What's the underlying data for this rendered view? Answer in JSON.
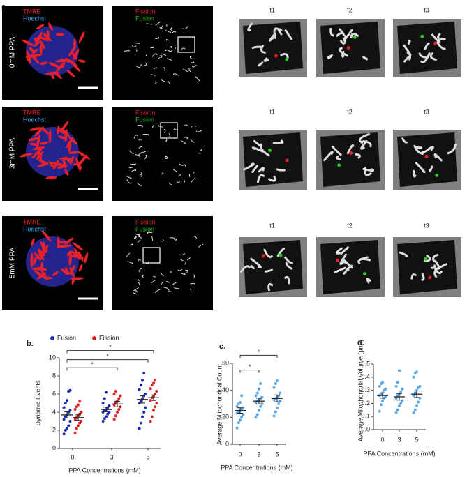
{
  "panels": {
    "label": "a.",
    "rows": [
      {
        "label": "0mM PPA",
        "stain": [
          "TMRE",
          "Hoechst"
        ],
        "overlay": [
          "Fission",
          "Fusion"
        ],
        "times": [
          "t1",
          "t2",
          "t3"
        ]
      },
      {
        "label": "3mM PPA",
        "stain": [
          "TMRE",
          "Hoechst"
        ],
        "overlay": [
          "Fission",
          "Fusion"
        ],
        "times": [
          "t1",
          "t2",
          "t3"
        ]
      },
      {
        "label": "5mM PPA",
        "stain": [
          "TMRE",
          "Hoechst"
        ],
        "overlay": [
          "Fission",
          "Fusion"
        ],
        "times": [
          "t1",
          "t2",
          "t3"
        ]
      }
    ]
  },
  "chart_data": [
    {
      "type": "dot",
      "label": "b.",
      "ylabel": "Dynamic Events",
      "xlabel": "PPA Concentrations (mM)",
      "categories": [
        "0",
        "3",
        "5"
      ],
      "ylim": [
        0,
        10
      ],
      "yticks": [
        0,
        2,
        4,
        6,
        8,
        10
      ],
      "legend": true,
      "series": [
        {
          "name": "Fusion",
          "color": "#1f2db8",
          "values": [
            [
              1.6,
              2,
              2.2,
              2.5,
              3,
              3.2,
              3.5,
              3.7,
              4,
              4.2,
              4.5,
              5,
              5.3,
              6.3,
              6.4
            ],
            [
              3,
              3.3,
              3.5,
              3.8,
              4,
              4,
              4.2,
              4.3,
              4.5,
              4.7,
              5,
              5.5,
              6.2
            ],
            [
              2.2,
              2.8,
              3.5,
              4,
              4.5,
              5,
              5.2,
              5.5,
              5.8,
              6,
              6.5,
              7,
              7.5,
              8.3
            ]
          ],
          "means": [
            3.7,
            4.3,
            5.4
          ],
          "sems": [
            0.35,
            0.25,
            0.4
          ]
        },
        {
          "name": "Fission",
          "color": "#e02020",
          "values": [
            [
              1.7,
              2.2,
              2.5,
              2.8,
              3,
              3.2,
              3.4,
              3.6,
              3.8,
              4,
              4.3,
              4.6,
              4.8,
              5.2
            ],
            [
              3.2,
              3.6,
              4,
              4.3,
              4.6,
              4.8,
              5,
              5.2,
              5.5,
              5.8,
              6,
              6.3
            ],
            [
              3,
              3.5,
              4.2,
              4.6,
              5,
              5.3,
              5.6,
              5.8,
              6,
              6.3,
              6.6,
              7,
              7.2,
              7.5
            ]
          ],
          "means": [
            3.4,
            4.9,
            5.6
          ],
          "sems": [
            0.3,
            0.3,
            0.3
          ]
        }
      ],
      "brackets": [
        {
          "from": 0,
          "to": 2,
          "y": 10.8,
          "label": "*"
        },
        {
          "from": 0,
          "to": 2,
          "y": 9.8,
          "label": "*"
        },
        {
          "from": 0,
          "to": 1,
          "y": 8.9,
          "label": "*"
        }
      ]
    },
    {
      "type": "dot",
      "label": "c.",
      "ylabel": "Average Mitochondrial Count",
      "xlabel": "PPA Concentrations (mM)",
      "categories": [
        "0",
        "3",
        "5"
      ],
      "ylim": [
        0,
        60
      ],
      "yticks": [
        0,
        20,
        40,
        60
      ],
      "legend": false,
      "series": [
        {
          "color": "#5aa9e6",
          "values": [
            [
              12,
              16,
              18,
              20,
              22,
              23,
              24,
              25,
              26,
              27,
              28,
              30,
              31,
              36
            ],
            [
              20,
              22,
              25,
              28,
              30,
              31,
              32,
              33,
              34,
              35,
              36,
              38,
              41,
              45
            ],
            [
              21,
              24,
              27,
              30,
              32,
              33,
              34,
              35,
              36,
              38,
              42,
              45,
              47
            ]
          ],
          "means": [
            25,
            32,
            34
          ],
          "sems": [
            2,
            2.2,
            2.5
          ]
        }
      ],
      "brackets": [
        {
          "from": 0,
          "to": 2,
          "y": 66,
          "label": "*"
        },
        {
          "from": 0,
          "to": 1,
          "y": 55,
          "label": "*"
        }
      ]
    },
    {
      "type": "dot",
      "label": "d.",
      "ylabel": "Average Mitochondrial Volume (μm³)",
      "xlabel": "PPA Concentrations (mM)",
      "categories": [
        "0",
        "3",
        "5"
      ],
      "ylim": [
        0,
        0.5
      ],
      "yticks": [
        {
          "value": 0,
          "label": "0.0"
        },
        0.1,
        0.2,
        0.3,
        0.4,
        0.5
      ],
      "legend": false,
      "series": [
        {
          "color": "#5aa9e6",
          "values": [
            [
              0.14,
              0.19,
              0.22,
              0.24,
              0.25,
              0.26,
              0.27,
              0.28,
              0.3,
              0.31,
              0.33,
              0.35,
              0.36
            ],
            [
              0.13,
              0.15,
              0.18,
              0.2,
              0.22,
              0.24,
              0.26,
              0.27,
              0.29,
              0.31,
              0.33,
              0.36,
              0.45
            ],
            [
              0.13,
              0.15,
              0.18,
              0.21,
              0.24,
              0.26,
              0.28,
              0.3,
              0.32,
              0.33,
              0.4,
              0.43,
              0.44
            ]
          ],
          "means": [
            0.26,
            0.25,
            0.27
          ],
          "sems": [
            0.02,
            0.025,
            0.025
          ]
        }
      ],
      "brackets": []
    }
  ]
}
